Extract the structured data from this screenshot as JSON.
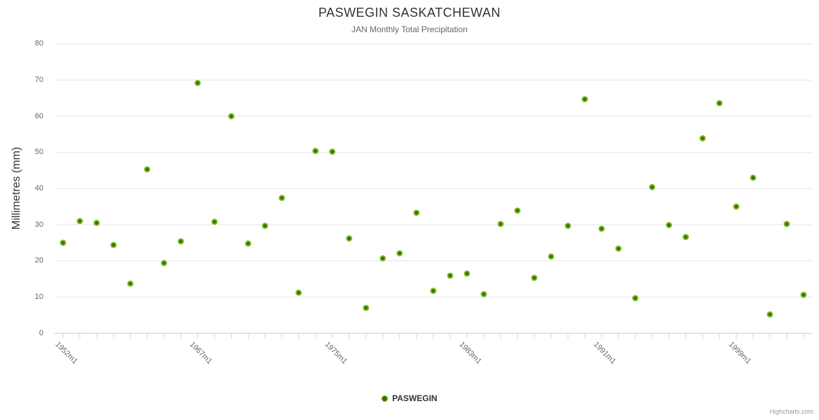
{
  "page": {
    "credits_label": "Highcharts.com"
  },
  "colors": {
    "title": "#333333",
    "subtitle": "#666666",
    "axis_line": "#ccd6eb",
    "tick_mark": "#ccd6eb",
    "grid_line": "#e6e6e6",
    "axis_label": "#666666",
    "marker_outer": "#84bb1f",
    "marker_core": "#2f6e0b",
    "legend_text": "#333333",
    "credits_text": "#999999"
  },
  "chart_data": {
    "type": "scatter",
    "title": "PASWEGIN SASKATCHEWAN",
    "subtitle": "JAN Monthly Total Precipitation",
    "xlabel": "",
    "ylabel": "Millimetres (mm)",
    "ylim": [
      0,
      80
    ],
    "yticks": [
      0,
      10,
      20,
      30,
      40,
      50,
      60,
      70,
      80
    ],
    "grid": "horizontal",
    "legend_position": "bottom-center",
    "categories_count": 45,
    "x_tick_labels": [
      {
        "index": 0,
        "label": "1952m1"
      },
      {
        "index": 8,
        "label": "1967m1"
      },
      {
        "index": 16,
        "label": "1975m1"
      },
      {
        "index": 24,
        "label": "1983m1"
      },
      {
        "index": 32,
        "label": "1991m1"
      },
      {
        "index": 40,
        "label": "1999m1"
      }
    ],
    "series": [
      {
        "name": "PASWEGIN",
        "marker": "circle",
        "values": [
          25.0,
          31.0,
          30.5,
          24.4,
          13.7,
          45.3,
          19.4,
          25.4,
          69.2,
          30.8,
          60.0,
          24.8,
          29.7,
          37.4,
          11.2,
          50.4,
          50.2,
          26.2,
          7.0,
          20.7,
          22.1,
          33.3,
          11.7,
          15.9,
          16.5,
          10.8,
          30.2,
          33.9,
          15.3,
          21.2,
          29.7,
          64.7,
          28.9,
          23.4,
          9.7,
          40.4,
          29.9,
          26.6,
          53.9,
          63.6,
          35.0,
          43.0,
          5.2,
          30.2,
          10.6
        ]
      }
    ]
  }
}
